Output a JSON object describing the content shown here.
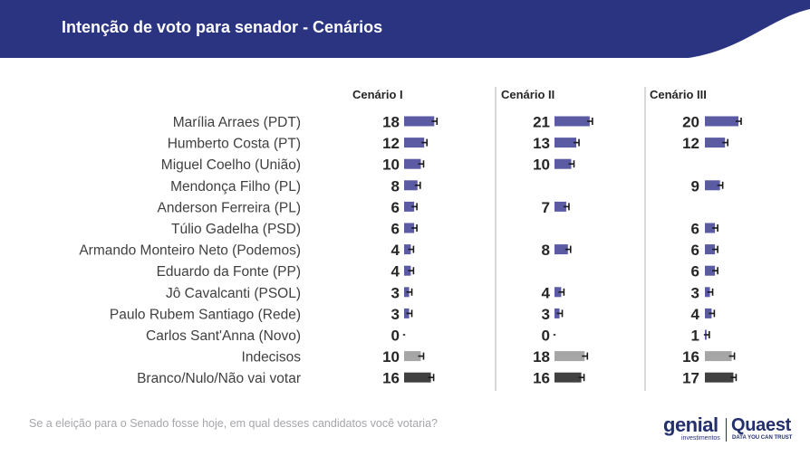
{
  "header": {
    "title": "Intenção de voto para senador - Cenários",
    "background": "#2b3481"
  },
  "footer": {
    "question": "Se a eleição para o Senado fosse hoje, em qual desses candidatos você votaria?",
    "logo_genial": "genial",
    "logo_genial_sub": "investimentos",
    "logo_quaest": "Quaest",
    "logo_quaest_sub": "DATA YOU CAN TRUST"
  },
  "colors": {
    "candidate_bar": "#5b5ba3",
    "indecisos_bar": "#a6a6a6",
    "branco_bar": "#404040",
    "error_bar": "#1a1a1a",
    "divider": "#b3b3b3"
  },
  "chart_data": {
    "type": "bar",
    "orientation": "horizontal",
    "error_bars": true,
    "categories": [
      "Marília Arraes (PDT)",
      "Humberto Costa (PT)",
      "Miguel Coelho (União)",
      "Mendonça Filho (PL)",
      "Anderson Ferreira (PL)",
      "Túlio Gadelha (PSD)",
      "Armando Monteiro Neto (Podemos)",
      "Eduardo da Fonte (PP)",
      "Jô Cavalcanti (PSOL)",
      "Paulo Rubem Santiago (Rede)",
      "Carlos Sant'Anna (Novo)",
      "Indecisos",
      "Branco/Nulo/Não vai votar"
    ],
    "series": [
      {
        "name": "Cenário I",
        "values": [
          18,
          12,
          10,
          8,
          6,
          6,
          4,
          4,
          3,
          3,
          0,
          10,
          16
        ]
      },
      {
        "name": "Cenário II",
        "values": [
          21,
          13,
          10,
          null,
          7,
          null,
          8,
          null,
          4,
          3,
          0,
          18,
          16
        ]
      },
      {
        "name": "Cenário III",
        "values": [
          20,
          12,
          null,
          9,
          null,
          6,
          6,
          6,
          3,
          4,
          1,
          16,
          17
        ]
      }
    ]
  }
}
